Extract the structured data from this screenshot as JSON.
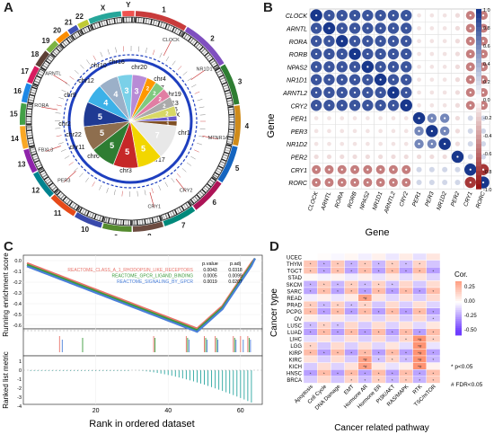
{
  "panels": {
    "a": "A",
    "b": "B",
    "c": "C",
    "d": "D"
  },
  "panel_a": {
    "outer_chromosomes": [
      "1",
      "2",
      "3",
      "4",
      "5",
      "6",
      "7",
      "8",
      "9",
      "10",
      "11",
      "12",
      "13",
      "14",
      "15",
      "16",
      "17",
      "18",
      "19",
      "20",
      "21",
      "22",
      "X",
      "Y"
    ],
    "inner_labels": [
      "chr1",
      "chr2",
      "chr3",
      "chr4",
      "chr5",
      "chr6",
      "chr7",
      "chr9",
      "chr10",
      "chr11",
      "chr12",
      "chr13",
      "chr15",
      "chr16",
      "chr17",
      "chr19",
      "chr20",
      "chr22",
      "chrX"
    ],
    "pie_values": [
      "7",
      "5",
      "5",
      "5",
      "5",
      "5",
      "4",
      "4",
      "3",
      "3",
      "2",
      "2",
      "2",
      "2",
      "2",
      "1",
      "1"
    ],
    "genes": [
      "CLOCK",
      "MTNR1A",
      "RORA",
      "PER3",
      "ARNTL",
      "CRY1",
      "CRY2",
      "FBXL3",
      "NR1D1"
    ]
  },
  "panel_b": {
    "genes": [
      "CLOCK",
      "ARNTL",
      "RORA",
      "RORB",
      "NPAS2",
      "NR1D1",
      "ARNTL2",
      "CRY2",
      "PER1",
      "PER3",
      "NR1D2",
      "PER2",
      "CRY1",
      "RORC"
    ],
    "xlabel": "Gene",
    "ylabel": "Gene",
    "colorbar_ticks": [
      "1.0",
      "0.8",
      "0.6",
      "0.4",
      "0.2",
      "0.0",
      "-0.2",
      "-0.4",
      "-0.6",
      "-0.8",
      "-1.0"
    ]
  },
  "panel_c": {
    "ylabel_top": "Running enrichment score",
    "ylabel_bottom": "Ranked list metric",
    "xlabel": "Rank in ordered dataset",
    "y_ticks_top": [
      "0.0",
      "-0.1",
      "-0.2",
      "-0.3",
      "-0.4",
      "-0.5",
      "-0.6"
    ],
    "y_ticks_bottom": [
      "1",
      "0",
      "-1",
      "-2",
      "-3",
      "-4"
    ],
    "x_ticks": [
      "20",
      "40",
      "60"
    ],
    "table_header": [
      "p.value",
      "p.adj"
    ],
    "series": [
      {
        "name": "REACTOME_CLASS_A_1_RHODOPSIN_LIKE_RECEPTORS",
        "p": "0.0043",
        "padj": "0.0318",
        "color": "#e8736a"
      },
      {
        "name": "REACTOME_GPCR_LIGAND_BINDING",
        "p": "0.0005",
        "padj": "0.0099",
        "color": "#3a9a3a"
      },
      {
        "name": "REACTOME_SIGNALING_BY_GPCR",
        "p": "0.0019",
        "padj": "0.0207",
        "color": "#4a7fd9"
      }
    ]
  },
  "panel_d": {
    "rows": [
      "UCEC",
      "THYM",
      "TGCT",
      "STAD",
      "SKCM",
      "SARC",
      "READ",
      "PRAD",
      "PCPG",
      "OV",
      "LUSC",
      "LUAD",
      "LIHC",
      "LGG",
      "KIRP",
      "KIRC",
      "KICH",
      "HNSC",
      "BRCA"
    ],
    "cols": [
      "Apoptosis",
      "Cell Cycle",
      "DNA Damage",
      "EMT",
      "Hormone AR",
      "Hormone ER",
      "PI3K/AKT",
      "RAS/MAPK",
      "RTK",
      "TSC/mTOR"
    ],
    "xlabel": "Cancer related pathway",
    "ylabel": "Cancer type",
    "legend_title": "Cor.",
    "legend_ticks": [
      "0.25",
      "0.00",
      "-0.25",
      "-0.50"
    ],
    "note1": "* p<0.05",
    "note2": "# FDR<0.05"
  }
}
